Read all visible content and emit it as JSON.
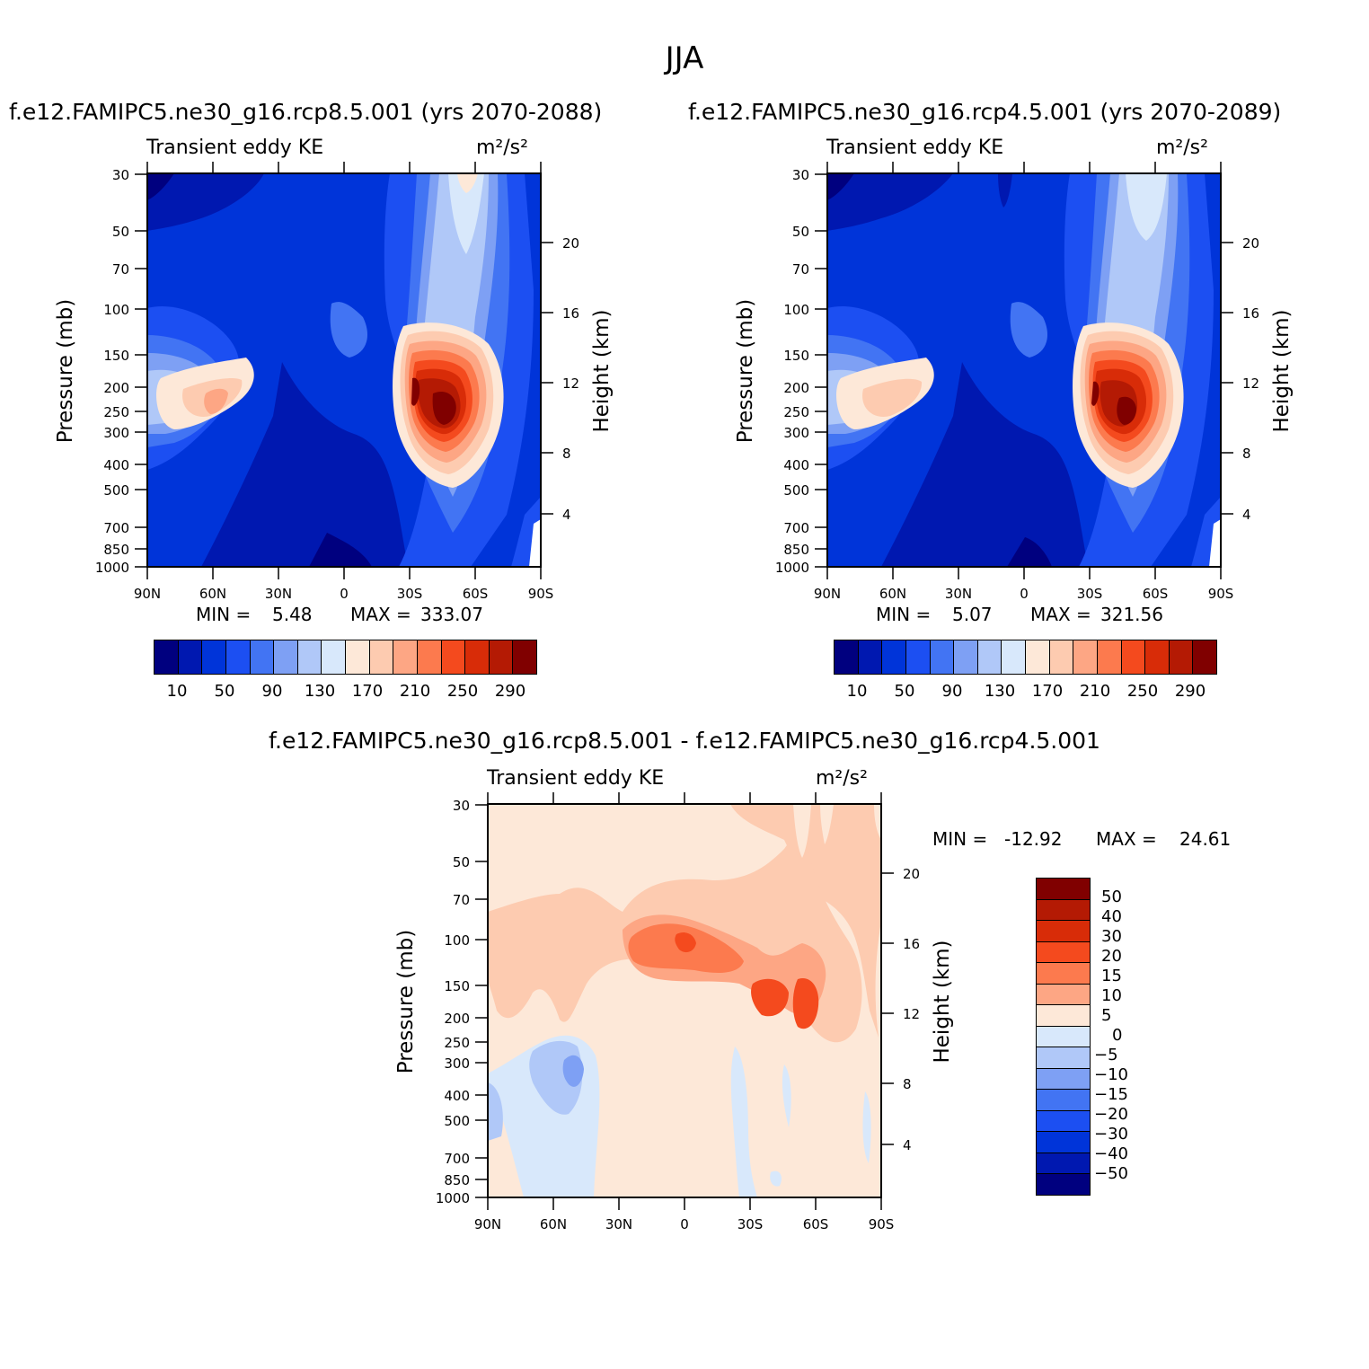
{
  "page": {
    "title": "JJA",
    "panel_a_title": "f.e12.FAMIPC5.ne30_g16.rcp8.5.001 (yrs 2070-2088)",
    "panel_b_title": "f.e12.FAMIPC5.ne30_g16.rcp4.5.001 (yrs 2070-2089)",
    "diff_title": "f.e12.FAMIPC5.ne30_g16.rcp8.5.001 - f.e12.FAMIPC5.ne30_g16.rcp4.5.001"
  },
  "panels": {
    "a": {
      "label": "Transient eddy KE",
      "units": "m²/s²",
      "min_label": "MIN =",
      "min_value": "5.48",
      "max_label": "MAX =",
      "max_value": "333.07"
    },
    "b": {
      "label": "Transient eddy KE",
      "units": "m²/s²",
      "min_label": "MIN =",
      "min_value": "5.07",
      "max_label": "MAX =",
      "max_value": "321.56"
    },
    "diff": {
      "label": "Transient eddy KE",
      "units": "m²/s²",
      "min_label": "MIN =",
      "min_value": "-12.92",
      "max_label": "MAX =",
      "max_value": "24.61"
    }
  },
  "axes": {
    "ylabel_left": "Pressure (mb)",
    "ylabel_right": "Height (km)",
    "pressure_ticks": [
      "30",
      "50",
      "70",
      "100",
      "150",
      "200",
      "250",
      "300",
      "400",
      "500",
      "700",
      "850",
      "1000"
    ],
    "height_ticks": [
      "20",
      "16",
      "12",
      "8",
      "4"
    ],
    "lat_ticks": [
      "90N",
      "60N",
      "30N",
      "0",
      "30S",
      "60S",
      "90S"
    ]
  },
  "colorbars": {
    "abs_labels": [
      "10",
      "50",
      "90",
      "130",
      "170",
      "210",
      "250",
      "290"
    ],
    "diff_labels": [
      "50",
      "40",
      "30",
      "20",
      "15",
      "10",
      "5",
      "0",
      "-5",
      "-10",
      "-15",
      "-20",
      "-30",
      "-40",
      "-50"
    ],
    "abs_colors": [
      "#00007f",
      "#0018b0",
      "#0034d9",
      "#1c4ff2",
      "#4274f3",
      "#7ea0f4",
      "#b0c8f8",
      "#d8e8fb",
      "#fde8d8",
      "#fdcbb0",
      "#fda684",
      "#fc7a4e",
      "#f44a1e",
      "#d82c08",
      "#b41a04",
      "#800000"
    ],
    "diff_colors": [
      "#800000",
      "#b41a04",
      "#d82c08",
      "#f44a1e",
      "#fc7a4e",
      "#fda684",
      "#fde8d8",
      "#d8e8fb",
      "#b0c8f8",
      "#7ea0f4",
      "#4274f3",
      "#1c4ff2",
      "#0034d9",
      "#0018b0",
      "#00007f"
    ]
  },
  "chart_data": [
    {
      "type": "heatmap",
      "title": "f.e12.FAMIPC5.ne30_g16.rcp8.5.001 (yrs 2070-2088)",
      "xlabel": "",
      "ylabel": "Pressure (mb)",
      "x_range": [
        "90N",
        "90S"
      ],
      "y_range_mb": [
        30,
        1000
      ],
      "y_scale": "log",
      "levels": [
        10,
        30,
        50,
        70,
        90,
        110,
        130,
        150,
        170,
        190,
        210,
        230,
        250,
        270,
        290
      ],
      "min": 5.48,
      "max": 333.07,
      "features": [
        {
          "name": "SH jet",
          "lat": -50,
          "pressure_mb": 250,
          "value": 333
        },
        {
          "name": "NH jet",
          "lat": 55,
          "pressure_mb": 220,
          "value": 190
        }
      ]
    },
    {
      "type": "heatmap",
      "title": "f.e12.FAMIPC5.ne30_g16.rcp4.5.001 (yrs 2070-2089)",
      "xlabel": "",
      "ylabel": "Pressure (mb)",
      "x_range": [
        "90N",
        "90S"
      ],
      "y_range_mb": [
        30,
        1000
      ],
      "y_scale": "log",
      "levels": [
        10,
        30,
        50,
        70,
        90,
        110,
        130,
        150,
        170,
        190,
        210,
        230,
        250,
        270,
        290
      ],
      "min": 5.07,
      "max": 321.56,
      "features": [
        {
          "name": "SH jet",
          "lat": -50,
          "pressure_mb": 250,
          "value": 321
        },
        {
          "name": "NH jet",
          "lat": 55,
          "pressure_mb": 220,
          "value": 185
        }
      ]
    },
    {
      "type": "heatmap",
      "title": "f.e12.FAMIPC5.ne30_g16.rcp8.5.001 - f.e12.FAMIPC5.ne30_g16.rcp4.5.001",
      "xlabel": "",
      "ylabel": "Pressure (mb)",
      "x_range": [
        "90N",
        "90S"
      ],
      "y_range_mb": [
        30,
        1000
      ],
      "y_scale": "log",
      "levels": [
        -50,
        -40,
        -30,
        -20,
        -15,
        -10,
        -5,
        0,
        5,
        10,
        15,
        20,
        30,
        40,
        50
      ],
      "min": -12.92,
      "max": 24.61,
      "features": [
        {
          "name": "tropical upper max",
          "lat": 0,
          "pressure_mb": 100,
          "value": 24
        },
        {
          "name": "SH mid max",
          "lat": -50,
          "pressure_mb": 160,
          "value": 22
        },
        {
          "name": "NH negative",
          "lat": 45,
          "pressure_mb": 300,
          "value": -12
        }
      ]
    }
  ]
}
